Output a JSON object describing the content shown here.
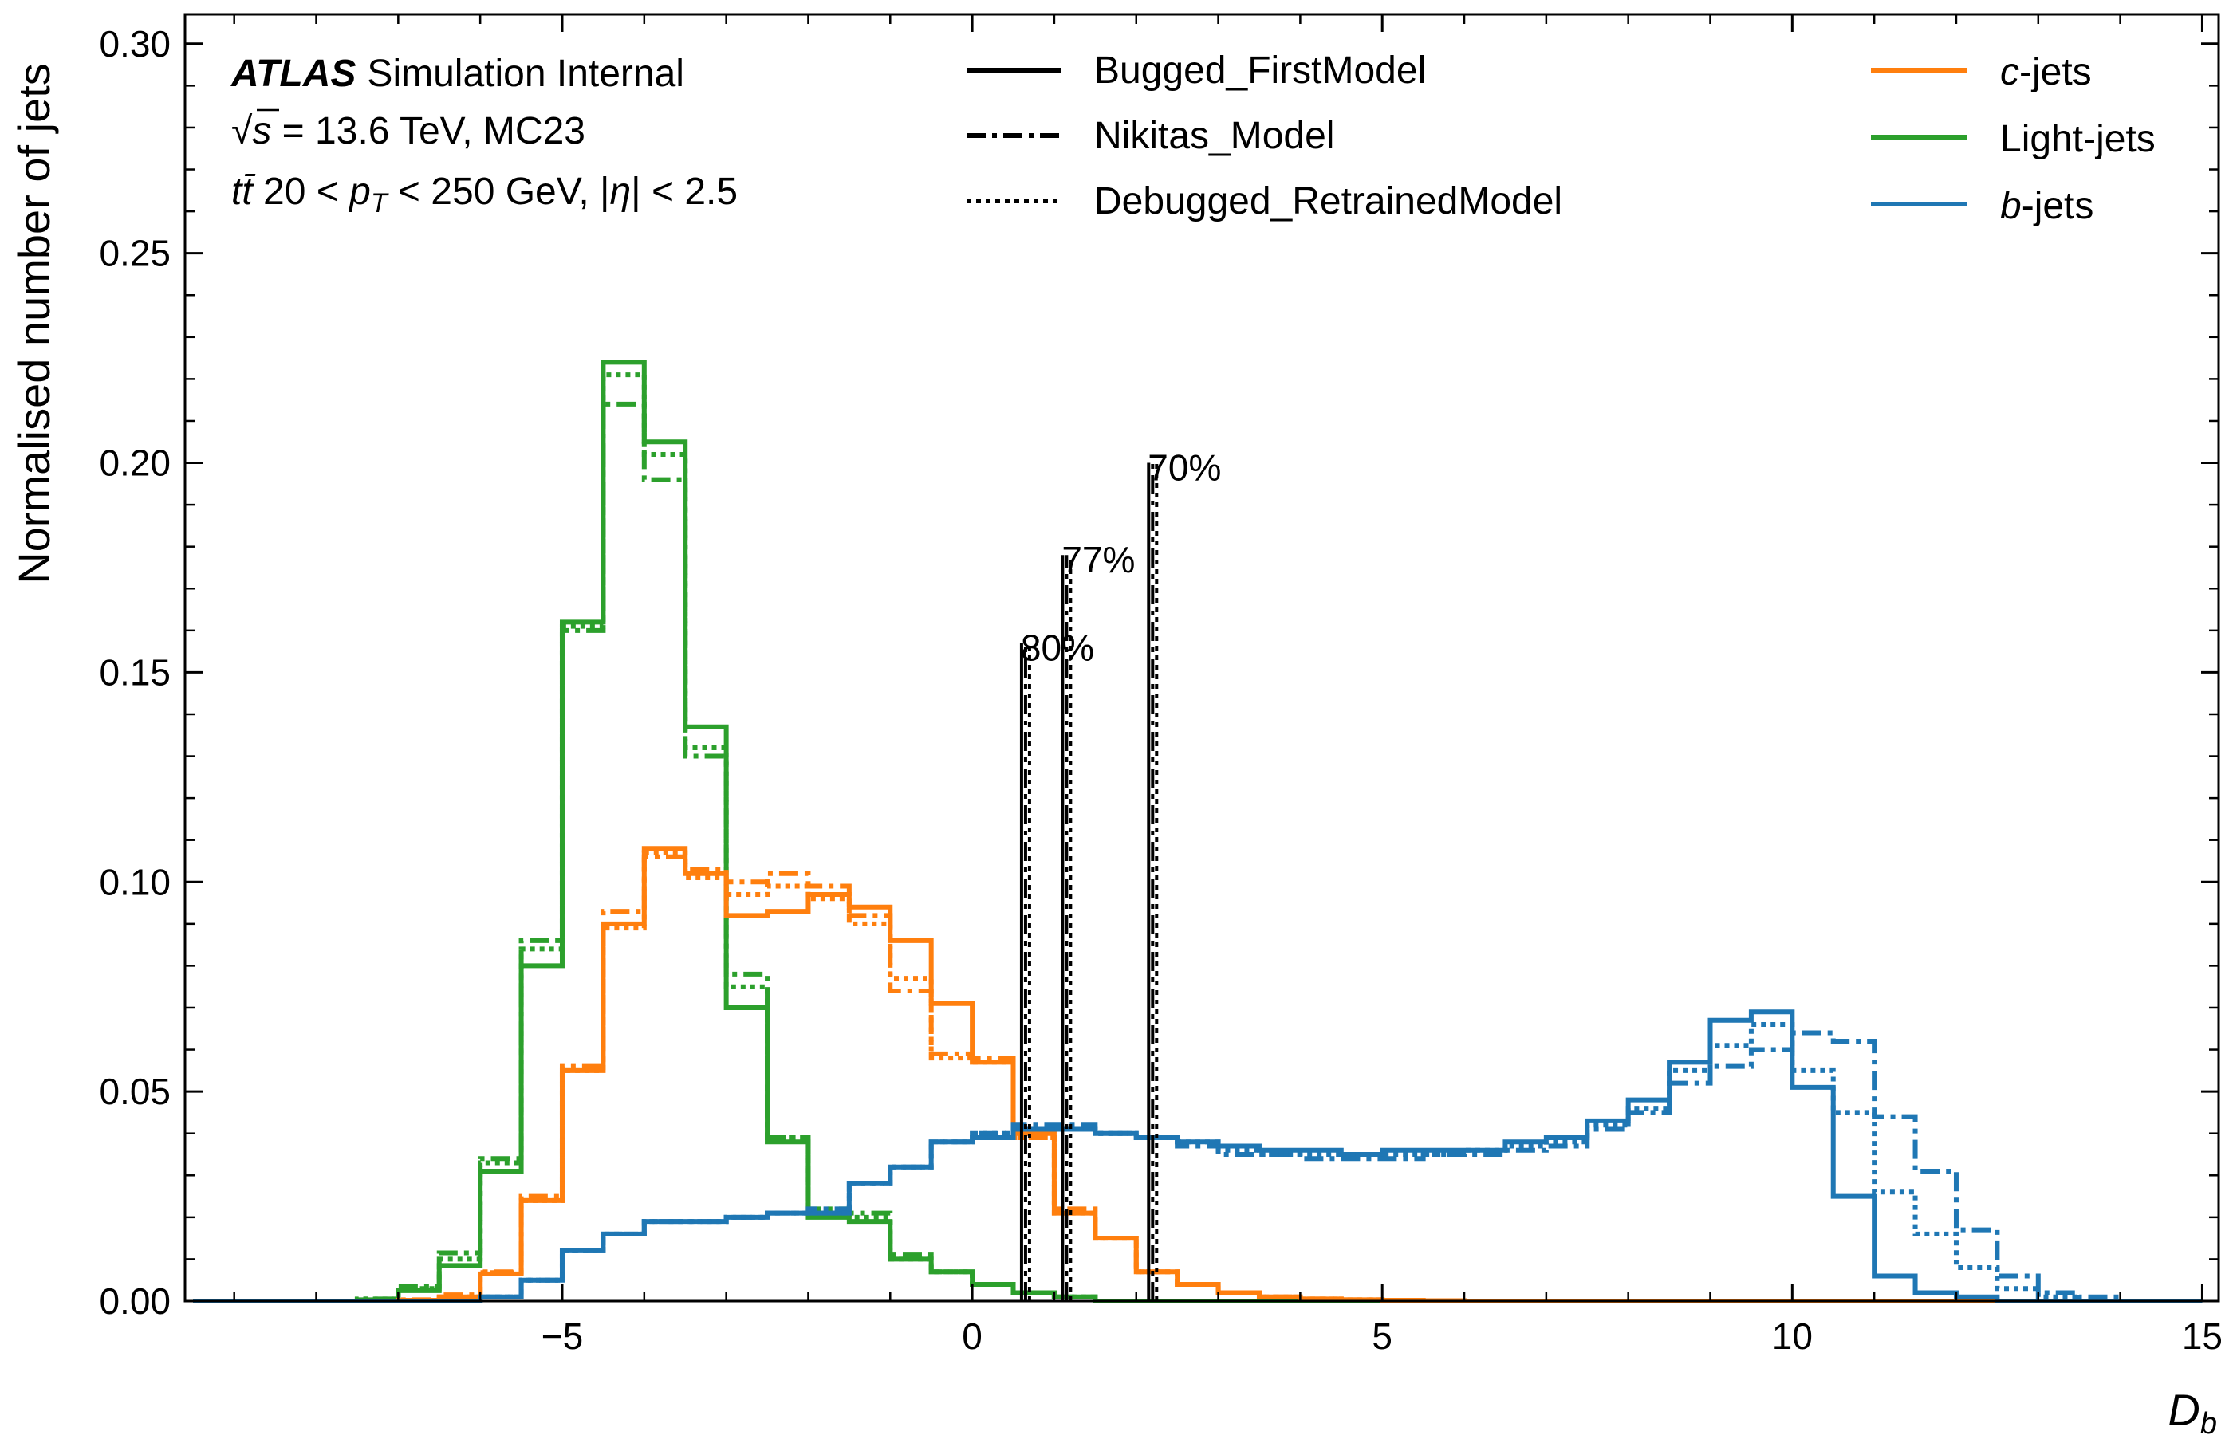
{
  "chart_data": {
    "type": "step-histogram",
    "xlabel_main": "D",
    "xlabel_sub": "b",
    "ylabel": "Normalised number of jets",
    "xlim": [
      -9.6,
      15.2
    ],
    "ylim": [
      0,
      0.307
    ],
    "x_ticks": [
      -5,
      0,
      5,
      10,
      15
    ],
    "x_tick_labels": [
      "−5",
      "0",
      "5",
      "10",
      "15"
    ],
    "y_ticks": [
      0,
      0.05,
      0.1,
      0.15,
      0.2,
      0.25,
      0.3
    ],
    "y_tick_labels": [
      "0.00",
      "0.05",
      "0.10",
      "0.15",
      "0.20",
      "0.25",
      "0.30"
    ],
    "atlas": {
      "brand": "ATLAS",
      "status": "Simulation Internal",
      "line2_sqrt": "√",
      "line2_s": "s",
      "line2_rest": " = 13.6 TeV, MC23",
      "line3_tt": "tt̄",
      "line3_rest_a": " 20 < ",
      "line3_p": "p",
      "line3_T": "T",
      "line3_rest_b": " < 250 GeV, |",
      "line3_eta": "η",
      "line3_rest_c": "| < 2.5"
    },
    "style_legend": [
      {
        "label": "Bugged_FirstModel",
        "dash": "solid"
      },
      {
        "label": "Nikitas_Model",
        "dash": "dashdot"
      },
      {
        "label": "Debugged_RetrainedModel",
        "dash": "dotted"
      }
    ],
    "flavour_legend": [
      {
        "italic": "c",
        "suffix": "-jets",
        "color": "#ff7f0e"
      },
      {
        "italic": "",
        "suffix": "Light-jets",
        "color": "#2ca02c"
      },
      {
        "italic": "b",
        "suffix": "-jets",
        "color": "#1f77b4"
      }
    ],
    "bin_edges": [
      -9.5,
      -9.0,
      -8.5,
      -8.0,
      -7.5,
      -7.0,
      -6.5,
      -6.0,
      -5.5,
      -5.0,
      -4.5,
      -4.0,
      -3.5,
      -3.0,
      -2.5,
      -2.0,
      -1.5,
      -1.0,
      -0.5,
      0.0,
      0.5,
      1.0,
      1.5,
      2.0,
      2.5,
      3.0,
      3.5,
      4.0,
      4.5,
      5.0,
      5.5,
      6.0,
      6.5,
      7.0,
      7.5,
      8.0,
      8.5,
      9.0,
      9.5,
      10.0,
      10.5,
      11.0,
      11.5,
      12.0,
      12.5,
      13.0,
      13.5,
      14.0,
      14.5,
      15.0
    ],
    "series": [
      {
        "flavour": "light",
        "model": "Bugged_FirstModel",
        "color": "#2ca02c",
        "dash": "solid",
        "values": [
          0,
          0,
          0,
          0,
          0.0003,
          0.0025,
          0.0085,
          0.031,
          0.08,
          0.162,
          0.224,
          0.205,
          0.137,
          0.07,
          0.038,
          0.02,
          0.019,
          0.01,
          0.007,
          0.004,
          0.002,
          0.001,
          0,
          0,
          0,
          0,
          0,
          0,
          0,
          0,
          0,
          0,
          0,
          0,
          0,
          0,
          0,
          0,
          0,
          0,
          0,
          0,
          0,
          0,
          0,
          0,
          0,
          0,
          0
        ]
      },
      {
        "flavour": "light",
        "model": "Nikitas_Model",
        "color": "#2ca02c",
        "dash": "dashdot",
        "values": [
          0,
          0,
          0,
          0,
          0.0005,
          0.0035,
          0.0115,
          0.034,
          0.086,
          0.16,
          0.214,
          0.196,
          0.13,
          0.078,
          0.039,
          0.022,
          0.021,
          0.011,
          0.007,
          0.004,
          0.002,
          0.001,
          0,
          0,
          0,
          0,
          0,
          0,
          0,
          0,
          0,
          0,
          0,
          0,
          0,
          0,
          0,
          0,
          0,
          0,
          0,
          0,
          0,
          0,
          0,
          0,
          0,
          0,
          0
        ]
      },
      {
        "flavour": "light",
        "model": "Debugged_RetrainedModel",
        "color": "#2ca02c",
        "dash": "dotted",
        "values": [
          0,
          0,
          0,
          0,
          0.0005,
          0.003,
          0.01,
          0.033,
          0.084,
          0.161,
          0.221,
          0.202,
          0.132,
          0.075,
          0.039,
          0.021,
          0.02,
          0.01,
          0.007,
          0.004,
          0.002,
          0.001,
          0,
          0,
          0,
          0,
          0,
          0,
          0,
          0,
          0,
          0,
          0,
          0,
          0,
          0,
          0,
          0,
          0,
          0,
          0,
          0,
          0,
          0,
          0,
          0,
          0,
          0,
          0
        ]
      },
      {
        "flavour": "c",
        "model": "Bugged_FirstModel",
        "color": "#ff7f0e",
        "dash": "solid",
        "values": [
          0,
          0,
          0,
          0,
          0,
          0.0002,
          0.001,
          0.0065,
          0.024,
          0.055,
          0.09,
          0.108,
          0.102,
          0.092,
          0.093,
          0.097,
          0.094,
          0.086,
          0.071,
          0.057,
          0.04,
          0.021,
          0.015,
          0.007,
          0.004,
          0.002,
          0.001,
          0.0005,
          0.0003,
          0.0002,
          0.0001,
          0,
          0,
          0,
          0,
          0,
          0,
          0,
          0,
          0,
          0,
          0,
          0,
          0,
          0,
          0,
          0,
          0,
          0
        ]
      },
      {
        "flavour": "c",
        "model": "Nikitas_Model",
        "color": "#ff7f0e",
        "dash": "dashdot",
        "values": [
          0,
          0,
          0,
          0,
          0,
          0.0003,
          0.0015,
          0.007,
          0.025,
          0.056,
          0.093,
          0.106,
          0.103,
          0.1,
          0.102,
          0.099,
          0.092,
          0.074,
          0.059,
          0.058,
          0.039,
          0.022,
          0.015,
          0.007,
          0.004,
          0.002,
          0.001,
          0.0005,
          0.0003,
          0.0002,
          0.0001,
          0,
          0,
          0,
          0,
          0,
          0,
          0,
          0,
          0,
          0,
          0,
          0,
          0,
          0,
          0,
          0,
          0,
          0
        ]
      },
      {
        "flavour": "c",
        "model": "Debugged_RetrainedModel",
        "color": "#ff7f0e",
        "dash": "dotted",
        "values": [
          0,
          0,
          0,
          0,
          0,
          0.0002,
          0.001,
          0.0068,
          0.024,
          0.055,
          0.089,
          0.107,
          0.101,
          0.097,
          0.099,
          0.096,
          0.09,
          0.077,
          0.058,
          0.057,
          0.039,
          0.021,
          0.015,
          0.007,
          0.004,
          0.002,
          0.001,
          0.0005,
          0.0003,
          0.0002,
          0.0001,
          0,
          0,
          0,
          0,
          0,
          0,
          0,
          0,
          0,
          0,
          0,
          0,
          0,
          0,
          0,
          0,
          0,
          0
        ]
      },
      {
        "flavour": "b",
        "model": "Bugged_FirstModel",
        "color": "#1f77b4",
        "dash": "solid",
        "values": [
          0,
          0,
          0,
          0,
          0,
          0,
          0,
          0.001,
          0.005,
          0.012,
          0.016,
          0.019,
          0.019,
          0.02,
          0.021,
          0.021,
          0.028,
          0.032,
          0.038,
          0.039,
          0.041,
          0.041,
          0.04,
          0.039,
          0.038,
          0.037,
          0.036,
          0.036,
          0.035,
          0.036,
          0.036,
          0.036,
          0.038,
          0.039,
          0.043,
          0.048,
          0.057,
          0.067,
          0.069,
          0.051,
          0.025,
          0.006,
          0.002,
          0.001,
          0,
          0,
          0,
          0,
          0
        ]
      },
      {
        "flavour": "b",
        "model": "Nikitas_Model",
        "color": "#1f77b4",
        "dash": "dashdot",
        "values": [
          0,
          0,
          0,
          0,
          0,
          0,
          0,
          0.001,
          0.005,
          0.012,
          0.016,
          0.019,
          0.019,
          0.02,
          0.021,
          0.022,
          0.028,
          0.032,
          0.038,
          0.04,
          0.042,
          0.042,
          0.04,
          0.039,
          0.037,
          0.035,
          0.035,
          0.034,
          0.034,
          0.034,
          0.035,
          0.035,
          0.036,
          0.037,
          0.041,
          0.045,
          0.052,
          0.056,
          0.06,
          0.064,
          0.062,
          0.044,
          0.031,
          0.017,
          0.006,
          0.002,
          0.001,
          0,
          0
        ]
      },
      {
        "flavour": "b",
        "model": "Debugged_RetrainedModel",
        "color": "#1f77b4",
        "dash": "dotted",
        "values": [
          0,
          0,
          0,
          0,
          0,
          0,
          0,
          0.001,
          0.005,
          0.012,
          0.016,
          0.019,
          0.019,
          0.02,
          0.021,
          0.021,
          0.028,
          0.032,
          0.038,
          0.04,
          0.041,
          0.041,
          0.04,
          0.039,
          0.038,
          0.036,
          0.035,
          0.035,
          0.035,
          0.035,
          0.035,
          0.036,
          0.037,
          0.038,
          0.042,
          0.046,
          0.055,
          0.061,
          0.066,
          0.055,
          0.045,
          0.026,
          0.016,
          0.008,
          0.003,
          0.001,
          0,
          0,
          0
        ]
      }
    ],
    "working_points": [
      {
        "label": "80%",
        "x": 0.65,
        "height": 0.157
      },
      {
        "label": "77%",
        "x": 1.15,
        "height": 0.178
      },
      {
        "label": "70%",
        "x": 2.2,
        "height": 0.2
      }
    ]
  }
}
